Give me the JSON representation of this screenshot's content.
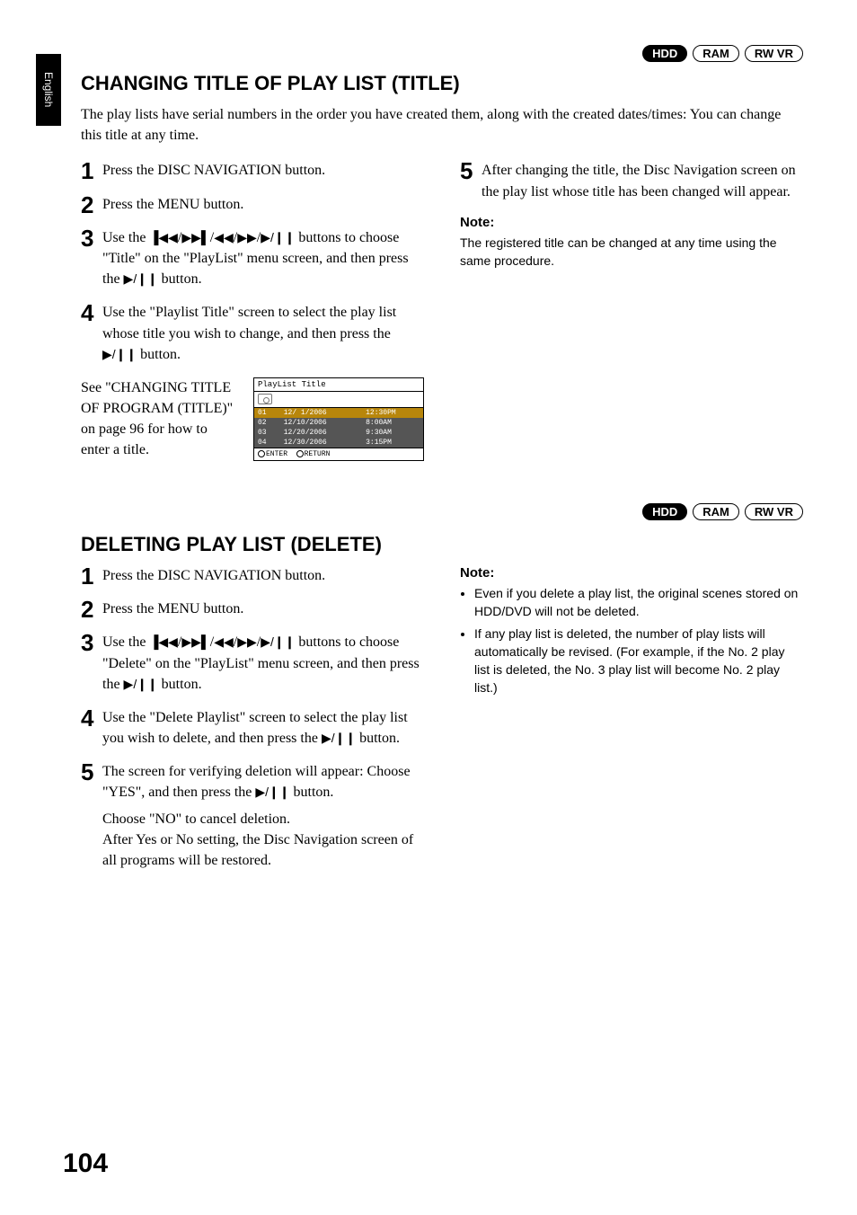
{
  "side_tab": "English",
  "badges": {
    "hdd": "HDD",
    "ram": "RAM",
    "rwvr": "RW VR"
  },
  "page_number": "104",
  "icons": {
    "prev_track": "▐◀◀",
    "next_track": "▶▶▌",
    "rew": "◀◀",
    "ff": "▶▶",
    "play_pause": "▶/❙❙"
  },
  "section1": {
    "title": "CHANGING TITLE OF PLAY LIST (TITLE)",
    "intro": "The play lists have serial numbers in the order you have created them, along with the created dates/times: You can change this title at any time.",
    "steps_left": [
      {
        "n": "1",
        "t": "Press the DISC NAVIGATION button."
      },
      {
        "n": "2",
        "t": "Press the MENU button."
      },
      {
        "n": "3",
        "t_a": "Use the ",
        "t_b": " buttons to choose \"Title\" on the \"PlayList\" menu screen, and then press the ",
        "t_c": " button."
      },
      {
        "n": "4",
        "t_a": "Use the \"Playlist Title\" screen to select the play list whose title you wish to change, and then press the ",
        "t_b": " button."
      }
    ],
    "see": "See \"CHANGING TITLE OF PROGRAM (TITLE)\" on page 96 for how to enter a title.",
    "step5": "After changing the title, the Disc Navigation screen on the play list whose title has been changed will appear.",
    "note_head": "Note:",
    "note_text": "The registered title can be changed at any time using the same procedure.",
    "mini": {
      "title": "PlayList Title",
      "rows": [
        [
          "01",
          "12/ 1/2006",
          "12:30PM"
        ],
        [
          "02",
          "12/10/2006",
          "8:00AM"
        ],
        [
          "03",
          "12/20/2006",
          "9:30AM"
        ],
        [
          "04",
          "12/30/2006",
          "3:15PM"
        ]
      ],
      "foot_enter": "ENTER",
      "foot_return": "RETURN"
    }
  },
  "section2": {
    "title": "DELETING PLAY LIST (DELETE)",
    "steps_left": [
      {
        "n": "1",
        "t": "Press the DISC NAVIGATION button."
      },
      {
        "n": "2",
        "t": "Press the MENU button."
      },
      {
        "n": "3",
        "t_a": "Use the ",
        "t_b": " buttons to choose \"Delete\" on the \"PlayList\" menu screen, and then press the ",
        "t_c": " button."
      },
      {
        "n": "4",
        "t_a": "Use the \"Delete Playlist\" screen to select the play list you wish to delete, and then press the ",
        "t_b": " button."
      },
      {
        "n": "5",
        "t_a": "The screen for verifying deletion will appear: Choose \"YES\", and then press the ",
        "t_b": " button.",
        "sub": "Choose \"NO\" to cancel deletion.\nAfter Yes or No setting, the Disc Navigation screen of all programs will be restored."
      }
    ],
    "note_head": "Note:",
    "notes": [
      "Even if you delete a play list, the original scenes stored on HDD/DVD will not be deleted.",
      "If any play list is deleted, the number of play lists will automatically be revised. (For example, if the No. 2 play list is deleted, the No. 3 play list will become No. 2 play list.)"
    ]
  }
}
